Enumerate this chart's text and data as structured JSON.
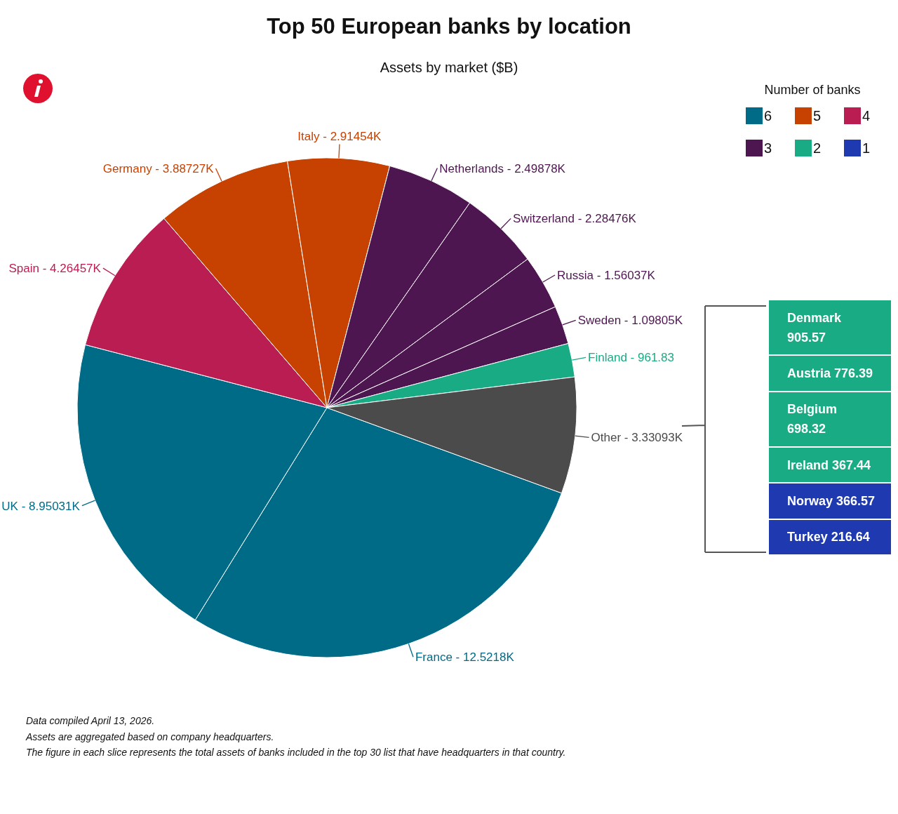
{
  "chart_data": [
    {
      "type": "pie",
      "title": "Top 50 European banks by location",
      "subtitle": "Assets by market ($B)",
      "categories": [
        "France -",
        "UK -",
        "Spain -",
        "Germany -",
        "Italy -",
        "Netherlands -",
        "Switzerland -",
        "Russia -",
        "Sweden -",
        "Finland -",
        "Other -"
      ],
      "values": [
        12521.8,
        8950.31,
        4264.57,
        3887.27,
        2914.54,
        2498.78,
        2284.76,
        1560.37,
        1098.05,
        961.83,
        3330.93
      ],
      "value_labels": [
        "12.5218K",
        "8.95031K",
        "4.26457K",
        "3.88727K",
        "2.91454K",
        "2.49878K",
        "2.28476K",
        "1.56037K",
        "1.09805K",
        "961.83",
        "3.33093K"
      ],
      "colors": [
        "#006b87",
        "#006b87",
        "#b91d51",
        "#c74200",
        "#c74200",
        "#4e1650",
        "#4e1650",
        "#4e1650",
        "#4e1650",
        "#19ab84",
        "#4b4b4b"
      ],
      "annotations": [
        "Data compiled April 13, 2026.",
        "Assets are aggregated based on company headquarters.",
        "The figure in each slice represents the total assets of banks included in the top 30 list that have headquarters in that country."
      ]
    },
    {
      "type": "other",
      "categories": [
        "Denmark",
        "Austria",
        "Belgium",
        "Ireland",
        "Norway",
        "Turkey"
      ],
      "values": [
        905.57,
        776.39,
        698.32,
        367.44,
        366.57,
        216.64
      ],
      "colors": [
        "#19ab84",
        "#19ab84",
        "#19ab84",
        "#19ab84",
        "#1f39b0",
        "#1f39b0"
      ],
      "data_labels": true
    },
    {
      "type": "other",
      "legend_title": "Number of banks",
      "categories": [
        "6",
        "5",
        "4",
        "3",
        "2",
        "1"
      ],
      "colors": [
        "#006b87",
        "#c74200",
        "#b91d51",
        "#4e1650",
        "#19ab84",
        "#1f39b0"
      ]
    }
  ]
}
